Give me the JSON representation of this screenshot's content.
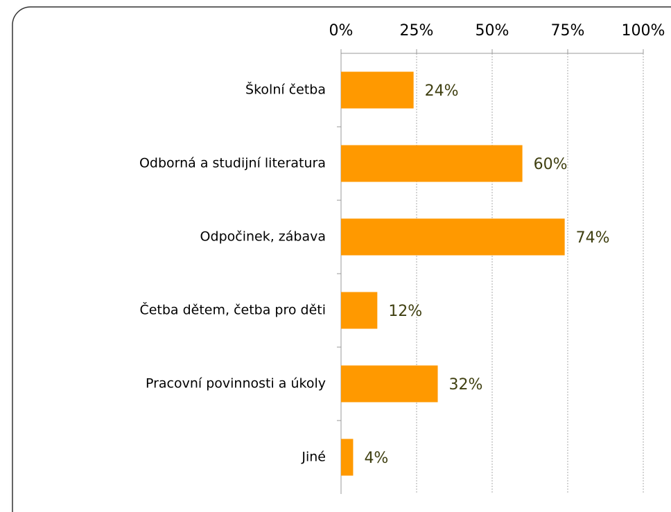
{
  "chart_data": {
    "type": "bar",
    "orientation": "horizontal",
    "categories": [
      "Školní četba",
      "Odborná a studijní literatura",
      "Odpočinek, zábava",
      "Četba dětem, četba pro děti",
      "Pracovní povinnosti a úkoly",
      "Jiné"
    ],
    "values": [
      24,
      60,
      74,
      12,
      32,
      4
    ],
    "value_labels": [
      "24%",
      "60%",
      "74%",
      "12%",
      "32%",
      "4%"
    ],
    "color": "#ff9900",
    "xlim": [
      0,
      100
    ],
    "xticks": [
      {
        "value": 0,
        "label": "0%"
      },
      {
        "value": 25,
        "label": "25%"
      },
      {
        "value": 50,
        "label": "50%"
      },
      {
        "value": 75,
        "label": "75%"
      },
      {
        "value": 100,
        "label": "100%"
      }
    ],
    "grid": true
  }
}
